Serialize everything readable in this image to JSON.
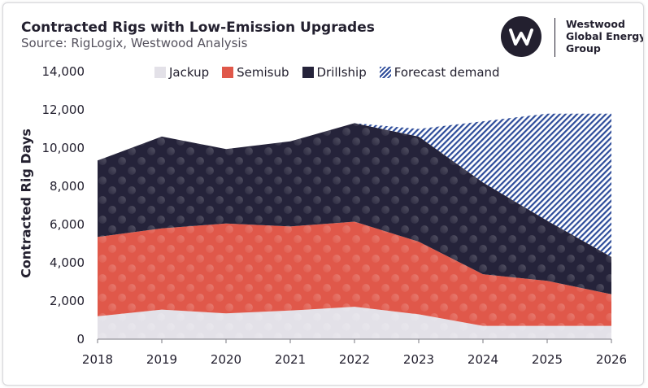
{
  "header": {
    "title": "Contracted Rigs with Low-Emission Upgrades",
    "subtitle": "Source: RigLogix, Westwood Analysis"
  },
  "logo": {
    "line1": "Westwood",
    "line2": "Global Energy",
    "line3": "Group"
  },
  "colors": {
    "jackup": "#e3e1e8",
    "semisub": "#e0584a",
    "drillship": "#25233a",
    "forecast": "#2d4c9a",
    "text": "#23202f"
  },
  "chart_data": {
    "type": "area",
    "title": "Contracted Rigs with Low-Emission Upgrades",
    "xlabel": "",
    "ylabel": "Contracted Rig Days",
    "categories": [
      "2018",
      "2019",
      "2020",
      "2021",
      "2022",
      "2023",
      "2024",
      "2025",
      "2026"
    ],
    "ylim": [
      0,
      14000
    ],
    "yticks": [
      "0",
      "2,000",
      "4,000",
      "6,000",
      "8,000",
      "10,000",
      "12,000",
      "14,000"
    ],
    "grid": false,
    "stacked": true,
    "legend_position": "top",
    "series": [
      {
        "name": "Jackup",
        "values": [
          1200,
          1550,
          1350,
          1500,
          1700,
          1300,
          700,
          700,
          700
        ]
      },
      {
        "name": "Semisub",
        "values": [
          4150,
          4250,
          4700,
          4400,
          4450,
          3800,
          2700,
          2350,
          1650
        ]
      },
      {
        "name": "Drillship",
        "values": [
          4000,
          4800,
          3900,
          4450,
          5150,
          5500,
          4800,
          3150,
          1950
        ]
      },
      {
        "name": "Forecast demand",
        "values": [
          0,
          0,
          0,
          0,
          0,
          400,
          3200,
          5600,
          7500
        ]
      }
    ]
  }
}
